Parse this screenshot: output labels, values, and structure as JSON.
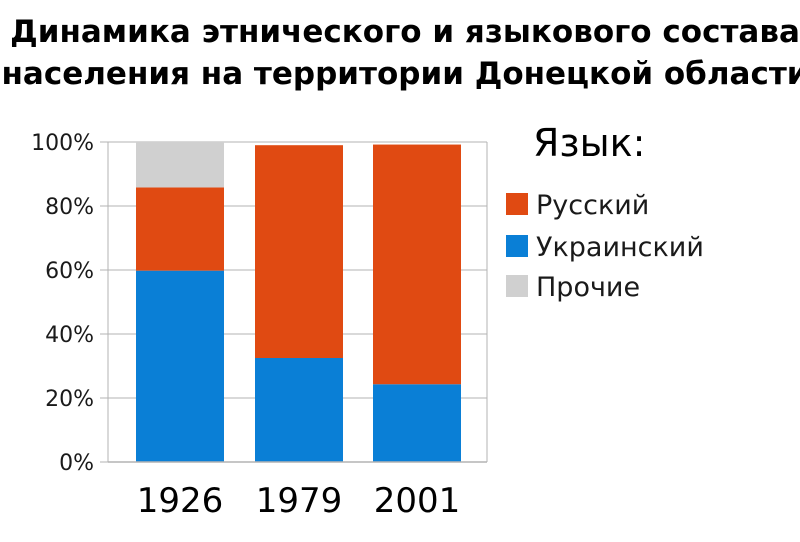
{
  "chart_data": {
    "type": "bar",
    "stacked": true,
    "title_lines": [
      "Динамика этнического и языкового состава",
      "населения на территории Донецкой области"
    ],
    "categories": [
      "1926",
      "1979",
      "2001"
    ],
    "series": [
      {
        "name": "Украинский",
        "values": [
          59.8,
          32.5,
          24.3
        ],
        "color": "#0a7fd6"
      },
      {
        "name": "Русский",
        "values": [
          26.0,
          66.5,
          74.9
        ],
        "color": "#e04a12"
      },
      {
        "name": "Прочие",
        "values": [
          14.2,
          0,
          0
        ],
        "color": "#d0d0d0"
      }
    ],
    "legend": {
      "title": "Язык:",
      "placement": "right",
      "items": [
        "Русский",
        "Украинский",
        "Прочие"
      ]
    },
    "y_ticks": [
      "0%",
      "20%",
      "40%",
      "60%",
      "80%",
      "100%"
    ],
    "ylim": [
      0,
      100
    ],
    "grid": true,
    "xlabel": "",
    "ylabel": ""
  }
}
